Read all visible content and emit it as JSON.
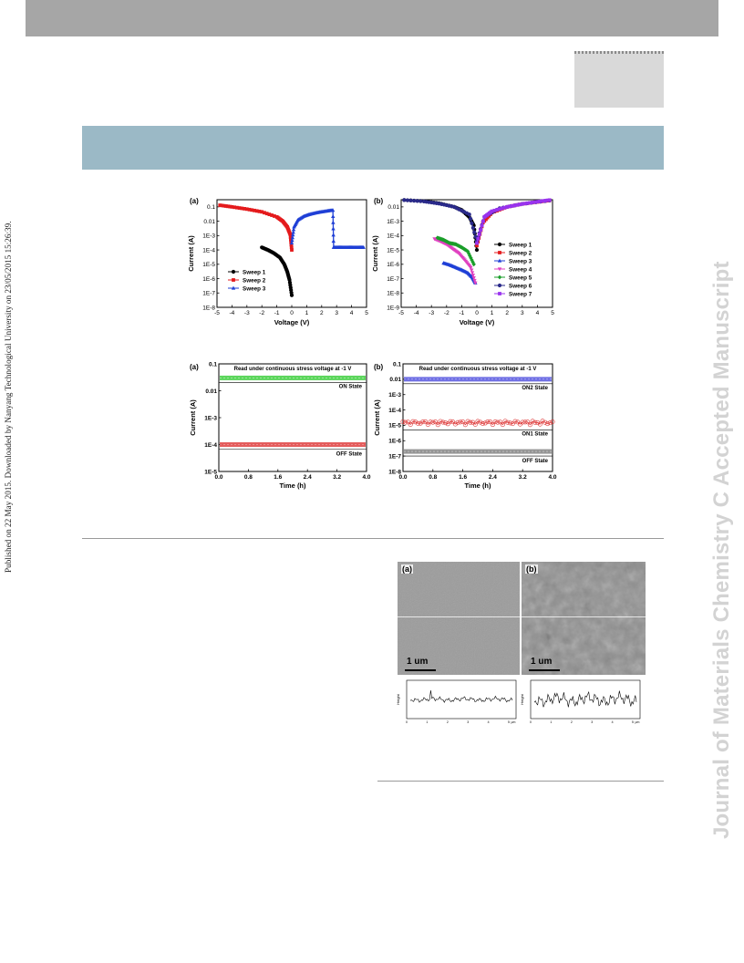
{
  "page": {
    "side_note": "Published on 22 May 2015. Downloaded by Nanyang Technological University on 23/05/2015 15:26:39.",
    "journal_watermark": "Journal of Materials Chemistry C Accepted Manuscript"
  },
  "chart_data": [
    {
      "panel": "(a)",
      "type": "scatter",
      "xlabel": "Voltage (V)",
      "ylabel": "Current (A)",
      "xlim": [
        -5,
        5
      ],
      "ylim_log10": [
        -8,
        -0.5
      ],
      "x_ticks": [
        "-5",
        "-4",
        "-3",
        "-2",
        "-1",
        "0",
        "1",
        "2",
        "3",
        "4",
        "5"
      ],
      "y_ticks": [
        "0.1",
        "0.01",
        "1E-3",
        "1E-4",
        "1E-5",
        "1E-6",
        "1E-7",
        "1E-8"
      ],
      "legend_position": "bottom-left",
      "series": [
        {
          "name": "Sweep 1",
          "color": "#000000",
          "x": [
            -2.0,
            -1.6,
            -1.2,
            -0.8,
            -0.5,
            -0.3,
            -0.15,
            0.0
          ],
          "y": [
            0.00015,
            0.0001,
            6e-05,
            3e-05,
            1e-05,
            3e-06,
            8e-07,
            7e-08
          ]
        },
        {
          "name": "Sweep 2",
          "color": "#e41a1c",
          "x": [
            -4.8,
            -4.0,
            -3.0,
            -2.0,
            -1.0,
            -0.6,
            -0.3,
            -0.1,
            0.0
          ],
          "y": [
            0.13,
            0.1,
            0.07,
            0.045,
            0.02,
            0.01,
            0.004,
            0.0012,
            0.0001
          ]
        },
        {
          "name": "Sweep 3",
          "color": "#1f3fd6",
          "x": [
            0.0,
            0.15,
            0.4,
            0.8,
            1.2,
            1.6,
            2.0,
            2.4,
            2.75,
            2.8,
            3.2,
            3.6,
            4.0,
            4.4,
            4.8
          ],
          "y": [
            0.0003,
            0.004,
            0.012,
            0.022,
            0.03,
            0.038,
            0.045,
            0.052,
            0.058,
            0.00015,
            0.00015,
            0.00015,
            0.00015,
            0.00015,
            0.00015
          ]
        }
      ]
    },
    {
      "panel": "(b)",
      "type": "scatter",
      "xlabel": "Voltage (V)",
      "ylabel": "Current (A)",
      "xlim": [
        -5,
        5
      ],
      "ylim_log10": [
        -9,
        -1.5
      ],
      "x_ticks": [
        "-5",
        "-4",
        "-3",
        "-2",
        "-1",
        "0",
        "1",
        "2",
        "3",
        "4",
        "5"
      ],
      "y_ticks": [
        "0.01",
        "1E-3",
        "1E-4",
        "1E-5",
        "1E-6",
        "1E-7",
        "1E-8",
        "1E-9"
      ],
      "legend_position": "right",
      "series": [
        {
          "name": "Sweep 1",
          "color": "#000000",
          "x": [
            -4.8,
            -3.5,
            -2.5,
            -1.5,
            -1.0,
            -0.5,
            -0.2,
            0.0
          ],
          "y": [
            0.03,
            0.025,
            0.018,
            0.01,
            0.006,
            0.002,
            0.0005,
            1e-05
          ]
        },
        {
          "name": "Sweep 2",
          "color": "#e41a1c",
          "x": [
            0.0,
            0.4,
            1.0,
            2.0,
            3.0,
            4.0,
            4.8
          ],
          "y": [
            2e-05,
            0.0008,
            0.004,
            0.01,
            0.016,
            0.022,
            0.028
          ]
        },
        {
          "name": "Sweep 3",
          "color": "#1f3fd6",
          "x": [
            -2.2,
            -1.8,
            -1.4,
            -1.0,
            -0.6,
            -0.3,
            -0.1
          ],
          "y": [
            1.2e-06,
            9e-07,
            6e-07,
            4e-07,
            2.5e-07,
            1.2e-07,
            5e-08
          ]
        },
        {
          "name": "Sweep 4",
          "color": "#e040c0",
          "x": [
            -2.8,
            -2.4,
            -2.0,
            -1.6,
            -1.2,
            -0.8,
            -0.4,
            -0.1
          ],
          "y": [
            6e-05,
            4e-05,
            2.5e-05,
            1.2e-05,
            6e-06,
            2e-06,
            6e-07,
            5e-08
          ]
        },
        {
          "name": "Sweep 5",
          "color": "#1a9e2a",
          "x": [
            -2.6,
            -2.2,
            -1.8,
            -1.4,
            -1.0,
            -0.6,
            -0.2
          ],
          "y": [
            7e-05,
            5e-05,
            3e-05,
            2.5e-05,
            1.5e-05,
            8e-06,
            1e-06
          ]
        },
        {
          "name": "Sweep 6",
          "color": "#2a2a8a",
          "x": [
            -4.8,
            -3.5,
            -2.5,
            -1.5,
            -0.5,
            0.0,
            0.5,
            1.5,
            3.0,
            4.8
          ],
          "y": [
            0.03,
            0.024,
            0.017,
            0.01,
            0.003,
            4e-05,
            0.002,
            0.008,
            0.016,
            0.028
          ]
        },
        {
          "name": "Sweep 7",
          "color": "#9933ee",
          "x": [
            0.0,
            0.5,
            1.0,
            2.0,
            3.0,
            4.0,
            4.8
          ],
          "y": [
            3e-05,
            0.002,
            0.005,
            0.01,
            0.016,
            0.023,
            0.03
          ]
        }
      ]
    },
    {
      "panel": "(a)",
      "type": "scatter",
      "xlabel": "Time (h)",
      "ylabel": "Current (A)",
      "xlim": [
        0,
        4
      ],
      "ylim_log10": [
        -5,
        -1
      ],
      "x_ticks": [
        "0.0",
        "0.8",
        "1.6",
        "2.4",
        "3.2",
        "4.0"
      ],
      "y_ticks": [
        "0.1",
        "0.01",
        "1E-3",
        "1E-4",
        "1E-5"
      ],
      "annotation": "Read under continuous stress voltage at -1 V",
      "state_labels": [
        "ON State",
        "OFF State"
      ],
      "series": [
        {
          "name": "ON State",
          "color": "#33cc33",
          "value": 0.03
        },
        {
          "name": "OFF State",
          "color": "#dd3333",
          "value": 0.0001
        }
      ]
    },
    {
      "panel": "(b)",
      "type": "scatter",
      "xlabel": "Time (h)",
      "ylabel": "Current (A)",
      "xlim": [
        0,
        4
      ],
      "ylim_log10": [
        -8,
        -1
      ],
      "x_ticks": [
        "0.0",
        "0.8",
        "1.6",
        "2.4",
        "3.2",
        "4.0"
      ],
      "y_ticks": [
        "0.1",
        "0.01",
        "1E-3",
        "1E-4",
        "1E-5",
        "1E-6",
        "1E-7",
        "1E-8"
      ],
      "annotation": "Read under continuous stress voltage at -1 V",
      "state_labels": [
        "ON2 State",
        "ON1 State",
        "OFF State"
      ],
      "series": [
        {
          "name": "ON2 State",
          "color": "#4b4bdd",
          "value": 0.01
        },
        {
          "name": "ON1 State",
          "color": "#dd3333",
          "value": 1.5e-05
        },
        {
          "name": "OFF State",
          "color": "#7a7a7a",
          "value": 2e-07
        }
      ]
    }
  ],
  "afm": {
    "panels": [
      {
        "label": "(a)",
        "scale_bar": "1 um",
        "profile_x_ticks": [
          "0",
          "1",
          "2",
          "3",
          "4",
          "5"
        ]
      },
      {
        "label": "(b)",
        "scale_bar": "1 um",
        "profile_x_ticks": [
          "0",
          "1",
          "2",
          "3",
          "4",
          "5"
        ]
      }
    ],
    "profile_ylabel": "Height",
    "profile_unit": "μm"
  }
}
